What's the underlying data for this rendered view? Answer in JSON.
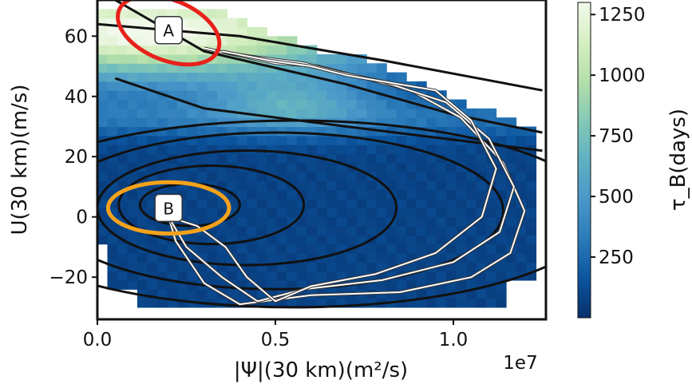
{
  "chart_data": {
    "type": "heatmap",
    "title": "",
    "xlabel": "|Ψ|(30 km)(m²/s)",
    "ylabel": "U(30 km)(m/s)",
    "x_offset_text": "1e7",
    "xlim": [
      0.0,
      1.26
    ],
    "ylim": [
      -34,
      72
    ],
    "x_ticks": [
      0.0,
      0.5,
      1.0
    ],
    "x_tick_labels": [
      "0.0",
      "0.5",
      "1.0"
    ],
    "y_ticks": [
      -20,
      0,
      20,
      40,
      60
    ],
    "y_tick_labels": [
      "−20",
      "0",
      "20",
      "40",
      "60"
    ],
    "colorbar": {
      "label": "τ_B(days)",
      "min": 0,
      "max": 1300,
      "ticks": [
        250,
        500,
        750,
        1000,
        1250
      ],
      "tick_labels": [
        "250",
        "500",
        "750",
        "1000",
        "1250"
      ],
      "colors": [
        "#08306b",
        "#0b559f",
        "#2b7bba",
        "#4a98c9",
        "#5fb0c2",
        "#84c9b6",
        "#b5dfaa",
        "#d6efc2",
        "#f2f9ec"
      ]
    },
    "regions": [
      {
        "label": "A",
        "center": [
          0.2,
          62
        ],
        "x_radius": 0.15,
        "y_radius": 10,
        "color": "#e8211b"
      },
      {
        "label": "B",
        "center": [
          0.2,
          3
        ],
        "x_radius": 0.17,
        "y_radius": 8.5,
        "color": "#f5a21b"
      }
    ],
    "trajectories": [
      {
        "x": [
          0.3,
          0.38,
          0.5,
          0.62,
          0.72,
          0.88,
          1.02,
          1.14,
          1.2,
          1.16,
          1.05,
          0.85,
          0.6,
          0.4,
          0.3,
          0.22,
          0.2
        ]
      },
      {
        "x": [
          0.33,
          0.45,
          0.58,
          0.68,
          0.8,
          0.98,
          1.1,
          1.17,
          1.13,
          1.0,
          0.8,
          0.58,
          0.45,
          0.35,
          0.25,
          0.2
        ]
      },
      {
        "x": [
          0.35,
          0.48,
          0.6,
          0.7,
          0.75,
          0.95,
          1.05,
          1.12,
          1.08,
          0.95,
          0.78,
          0.6,
          0.5,
          0.42,
          0.36,
          0.28,
          0.2
        ]
      }
    ],
    "trajectory_y": [
      [
        56,
        54,
        51,
        50,
        47,
        42,
        33,
        18,
        2,
        -12,
        -20,
        -25,
        -26,
        -29,
        -22,
        -8,
        0
      ],
      [
        55,
        53,
        51,
        48,
        45,
        38,
        26,
        10,
        -5,
        -15,
        -21,
        -24,
        -28,
        -20,
        -10,
        0
      ],
      [
        55,
        52,
        50,
        47,
        46,
        42,
        32,
        16,
        0,
        -12,
        -19,
        -23,
        -28,
        -20,
        -10,
        -3,
        0
      ]
    ]
  }
}
